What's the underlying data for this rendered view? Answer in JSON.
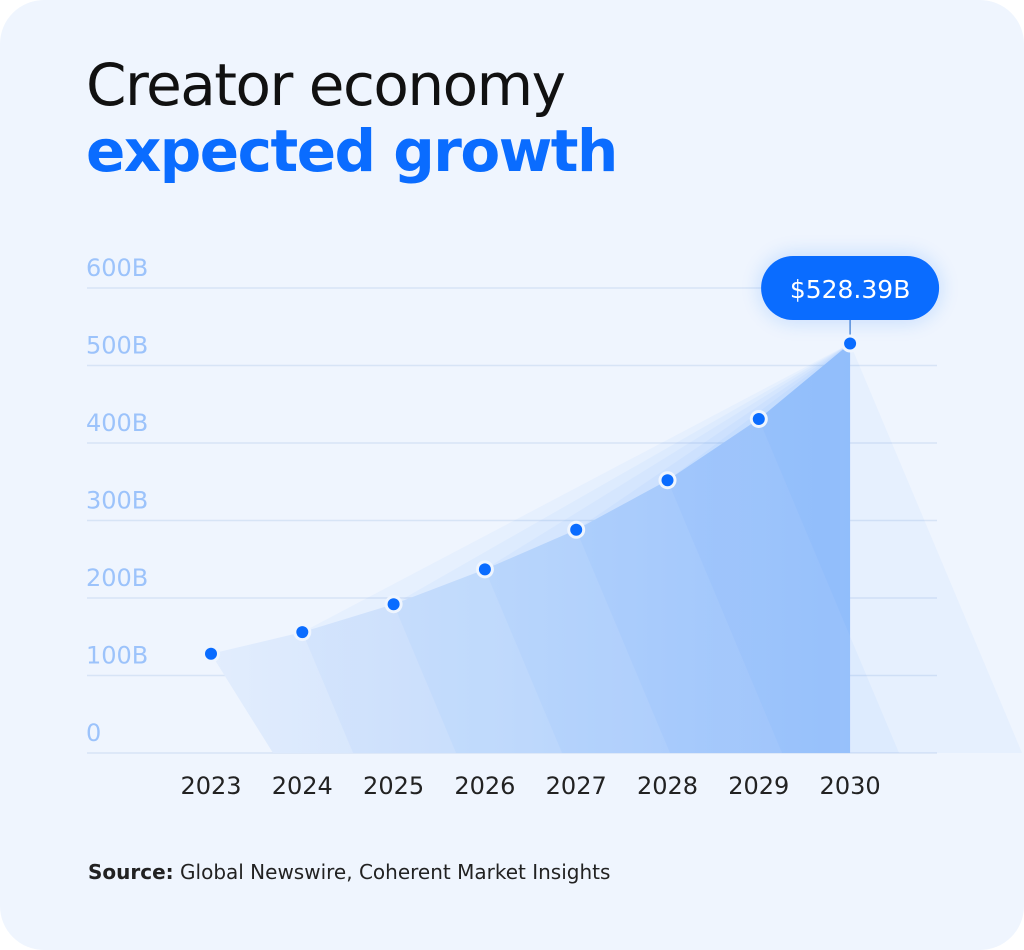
{
  "title_line1": "Creator economy",
  "title_line2": "expected growth",
  "source_label": "Source:",
  "source_text": " Global Newswire, Coherent Market Insights",
  "colors": {
    "accent": "#0a6cff",
    "background": "#eff5fe",
    "tick_label": "#9cc3fb",
    "area": "#bcd6fb"
  },
  "chart_data": {
    "type": "area",
    "title": "Creator economy expected growth",
    "categories": [
      "2023",
      "2024",
      "2025",
      "2026",
      "2027",
      "2028",
      "2029",
      "2030"
    ],
    "values": [
      128,
      156,
      192,
      237,
      288,
      352,
      431,
      528.39
    ],
    "unit": "B",
    "ylim": [
      0,
      600
    ],
    "yticks": [
      0,
      100,
      200,
      300,
      400,
      500,
      600
    ],
    "ytick_labels": [
      "0",
      "100B",
      "200B",
      "300B",
      "400B",
      "500B",
      "600B"
    ],
    "grid": true,
    "markers": true,
    "annotation": {
      "category": "2030",
      "label": "$528.39B"
    }
  }
}
